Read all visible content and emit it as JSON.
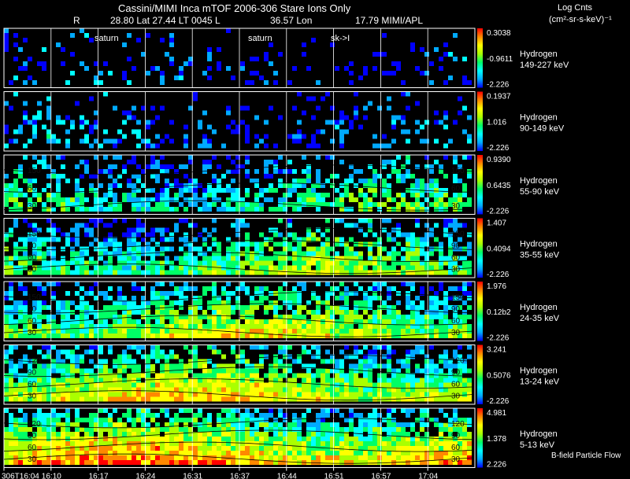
{
  "header": {
    "title": "Cassini/MIMI Inca mTOF  2006-306   Stare   Ions Only",
    "subtitle_parts": [
      "R",
      "28.80 Lat 27.44 LT 0045 L",
      "36.57 Lon",
      "17.79  MIMI/APL"
    ]
  },
  "colorbar_title": [
    "Log Cnts",
    "(cm²-sr-s-keV)⁻¹"
  ],
  "footer_note": "B-field Particle Flow",
  "markers": [
    "saturn",
    "saturn",
    "sk->I"
  ],
  "colors": {
    "background": "#000000",
    "grid": "#ffffff",
    "colorscale": [
      "#0000ff",
      "#00aaff",
      "#00ffff",
      "#00ff66",
      "#aaff00",
      "#ffff00",
      "#ff8800",
      "#ff0000"
    ]
  },
  "chart_data": {
    "type": "heatmap",
    "x_tick_labels": [
      "306T16:04",
      "16:10",
      "16:17",
      "16:24",
      "16:31",
      "16:37",
      "16:44",
      "16:51",
      "16:57",
      "17:04"
    ],
    "n_columns": 10,
    "panels": [
      {
        "species": "Hydrogen",
        "energy": "149-227 keV",
        "cbar_max": "0.3038",
        "cbar_mid": "-0.9611",
        "cbar_min": "-2.226",
        "level": 0.1,
        "contour_labels": []
      },
      {
        "species": "Hydrogen",
        "energy": "90-149 keV",
        "cbar_max": "0.1937",
        "cbar_mid": "1.016",
        "cbar_min": "-2.226",
        "level": 0.18,
        "contour_labels": []
      },
      {
        "species": "Hydrogen",
        "energy": "55-90 keV",
        "cbar_max": "0.9390",
        "cbar_mid": "0.6435",
        "cbar_min": "-2.226",
        "level": 0.4,
        "contour_labels": [
          "150",
          "60",
          "30"
        ]
      },
      {
        "species": "Hydrogen",
        "energy": "35-55 keV",
        "cbar_max": "1.407",
        "cbar_mid": "0.4094",
        "cbar_min": "-2.226",
        "level": 0.52,
        "contour_labels": [
          "150",
          "90",
          "60",
          "30"
        ]
      },
      {
        "species": "Hydrogen",
        "energy": "24-35 keV",
        "cbar_max": "1.976",
        "cbar_mid": "0.12b2",
        "cbar_min": "-2.226",
        "level": 0.6,
        "contour_labels": [
          "150",
          "90",
          "60",
          "30"
        ]
      },
      {
        "species": "Hydrogen",
        "energy": "13-24 keV",
        "cbar_max": "3.241",
        "cbar_mid": "0.5076",
        "cbar_min": "-2.226",
        "level": 0.68,
        "contour_labels": [
          "120",
          "90",
          "60",
          "30"
        ]
      },
      {
        "species": "Hydrogen",
        "energy": "5-13 keV",
        "cbar_max": "4.981",
        "cbar_mid": "1.378",
        "cbar_min": "2.226",
        "level": 0.78,
        "contour_labels": [
          "120",
          "90",
          "60",
          "30"
        ]
      }
    ]
  }
}
